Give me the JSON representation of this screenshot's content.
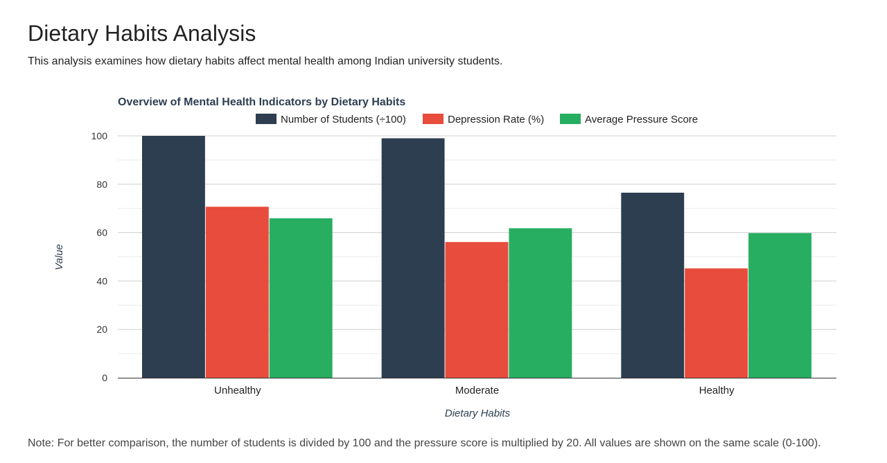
{
  "page": {
    "title": "Dietary Habits Analysis",
    "intro": "This analysis examines how dietary habits affect mental health among Indian university students.",
    "note": "Note: For better comparison, the number of students is divided by 100 and the pressure score is multiplied by 20. All values are shown on the same scale (0-100)."
  },
  "chart_data": {
    "type": "bar",
    "title": "Overview of Mental Health Indicators by Dietary Habits",
    "xlabel": "Dietary Habits",
    "ylabel": "Value",
    "categories": [
      "Unhealthy",
      "Moderate",
      "Healthy"
    ],
    "series": [
      {
        "name": "Number of Students (÷100)",
        "values": [
          100.5,
          99,
          76.5
        ],
        "color": "#2c3e50"
      },
      {
        "name": "Depression Rate (%)",
        "values": [
          70.7,
          56.1,
          45.2
        ],
        "color": "#e74c3c"
      },
      {
        "name": "Average Pressure Score",
        "values": [
          65.9,
          61.8,
          59.8
        ],
        "color": "#27ae60"
      }
    ],
    "ylim": [
      0,
      100
    ],
    "yticks": [
      "0",
      "20",
      "40",
      "60",
      "80",
      "100"
    ],
    "grid": true,
    "legend_position": "top"
  }
}
